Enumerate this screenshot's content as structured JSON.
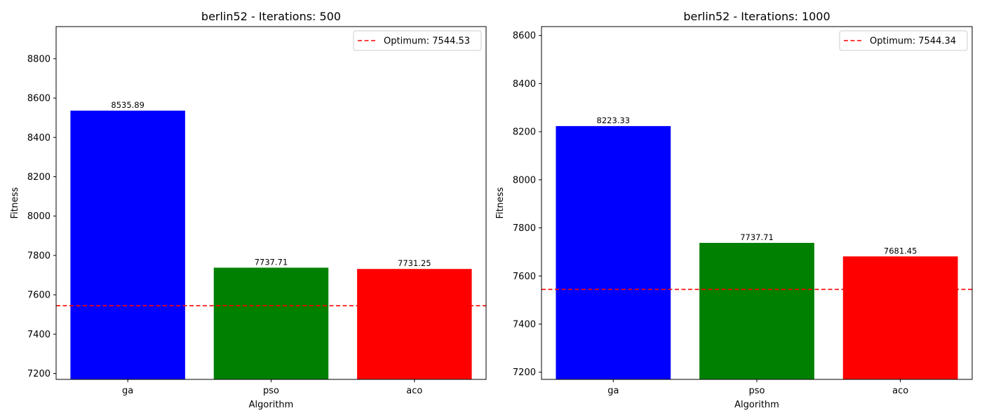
{
  "chart_data": [
    {
      "type": "bar",
      "title": "berlin52 - Iterations: 500",
      "xlabel": "Algorithm",
      "ylabel": "Fitness",
      "categories": [
        "ga",
        "pso",
        "aco"
      ],
      "values": [
        8535.89,
        7737.71,
        7731.25
      ],
      "value_labels": [
        "8535.89",
        "7737.71",
        "7731.25"
      ],
      "colors": [
        "#0000ff",
        "#008000",
        "#ff0000"
      ],
      "ylim": [
        7170,
        8963
      ],
      "yticks": [
        7200,
        7400,
        7600,
        7800,
        8000,
        8200,
        8400,
        8600,
        8800
      ],
      "reference_line": {
        "value": 7544.53,
        "label": "Optimum: 7544.53",
        "color": "#ff0000",
        "style": "dashed"
      },
      "legend": "top-right",
      "grid": false
    },
    {
      "type": "bar",
      "title": "berlin52 - Iterations: 1000",
      "xlabel": "Algorithm",
      "ylabel": "Fitness",
      "categories": [
        "ga",
        "pso",
        "aco"
      ],
      "values": [
        8223.33,
        7737.71,
        7681.45
      ],
      "value_labels": [
        "8223.33",
        "7737.71",
        "7681.45"
      ],
      "colors": [
        "#0000ff",
        "#008000",
        "#ff0000"
      ],
      "ylim": [
        7170,
        8637
      ],
      "yticks": [
        7200,
        7400,
        7600,
        7800,
        8000,
        8200,
        8400,
        8600
      ],
      "reference_line": {
        "value": 7544.34,
        "label": "Optimum: 7544.34",
        "color": "#ff0000",
        "style": "dashed"
      },
      "legend": "top-right",
      "grid": false
    }
  ]
}
